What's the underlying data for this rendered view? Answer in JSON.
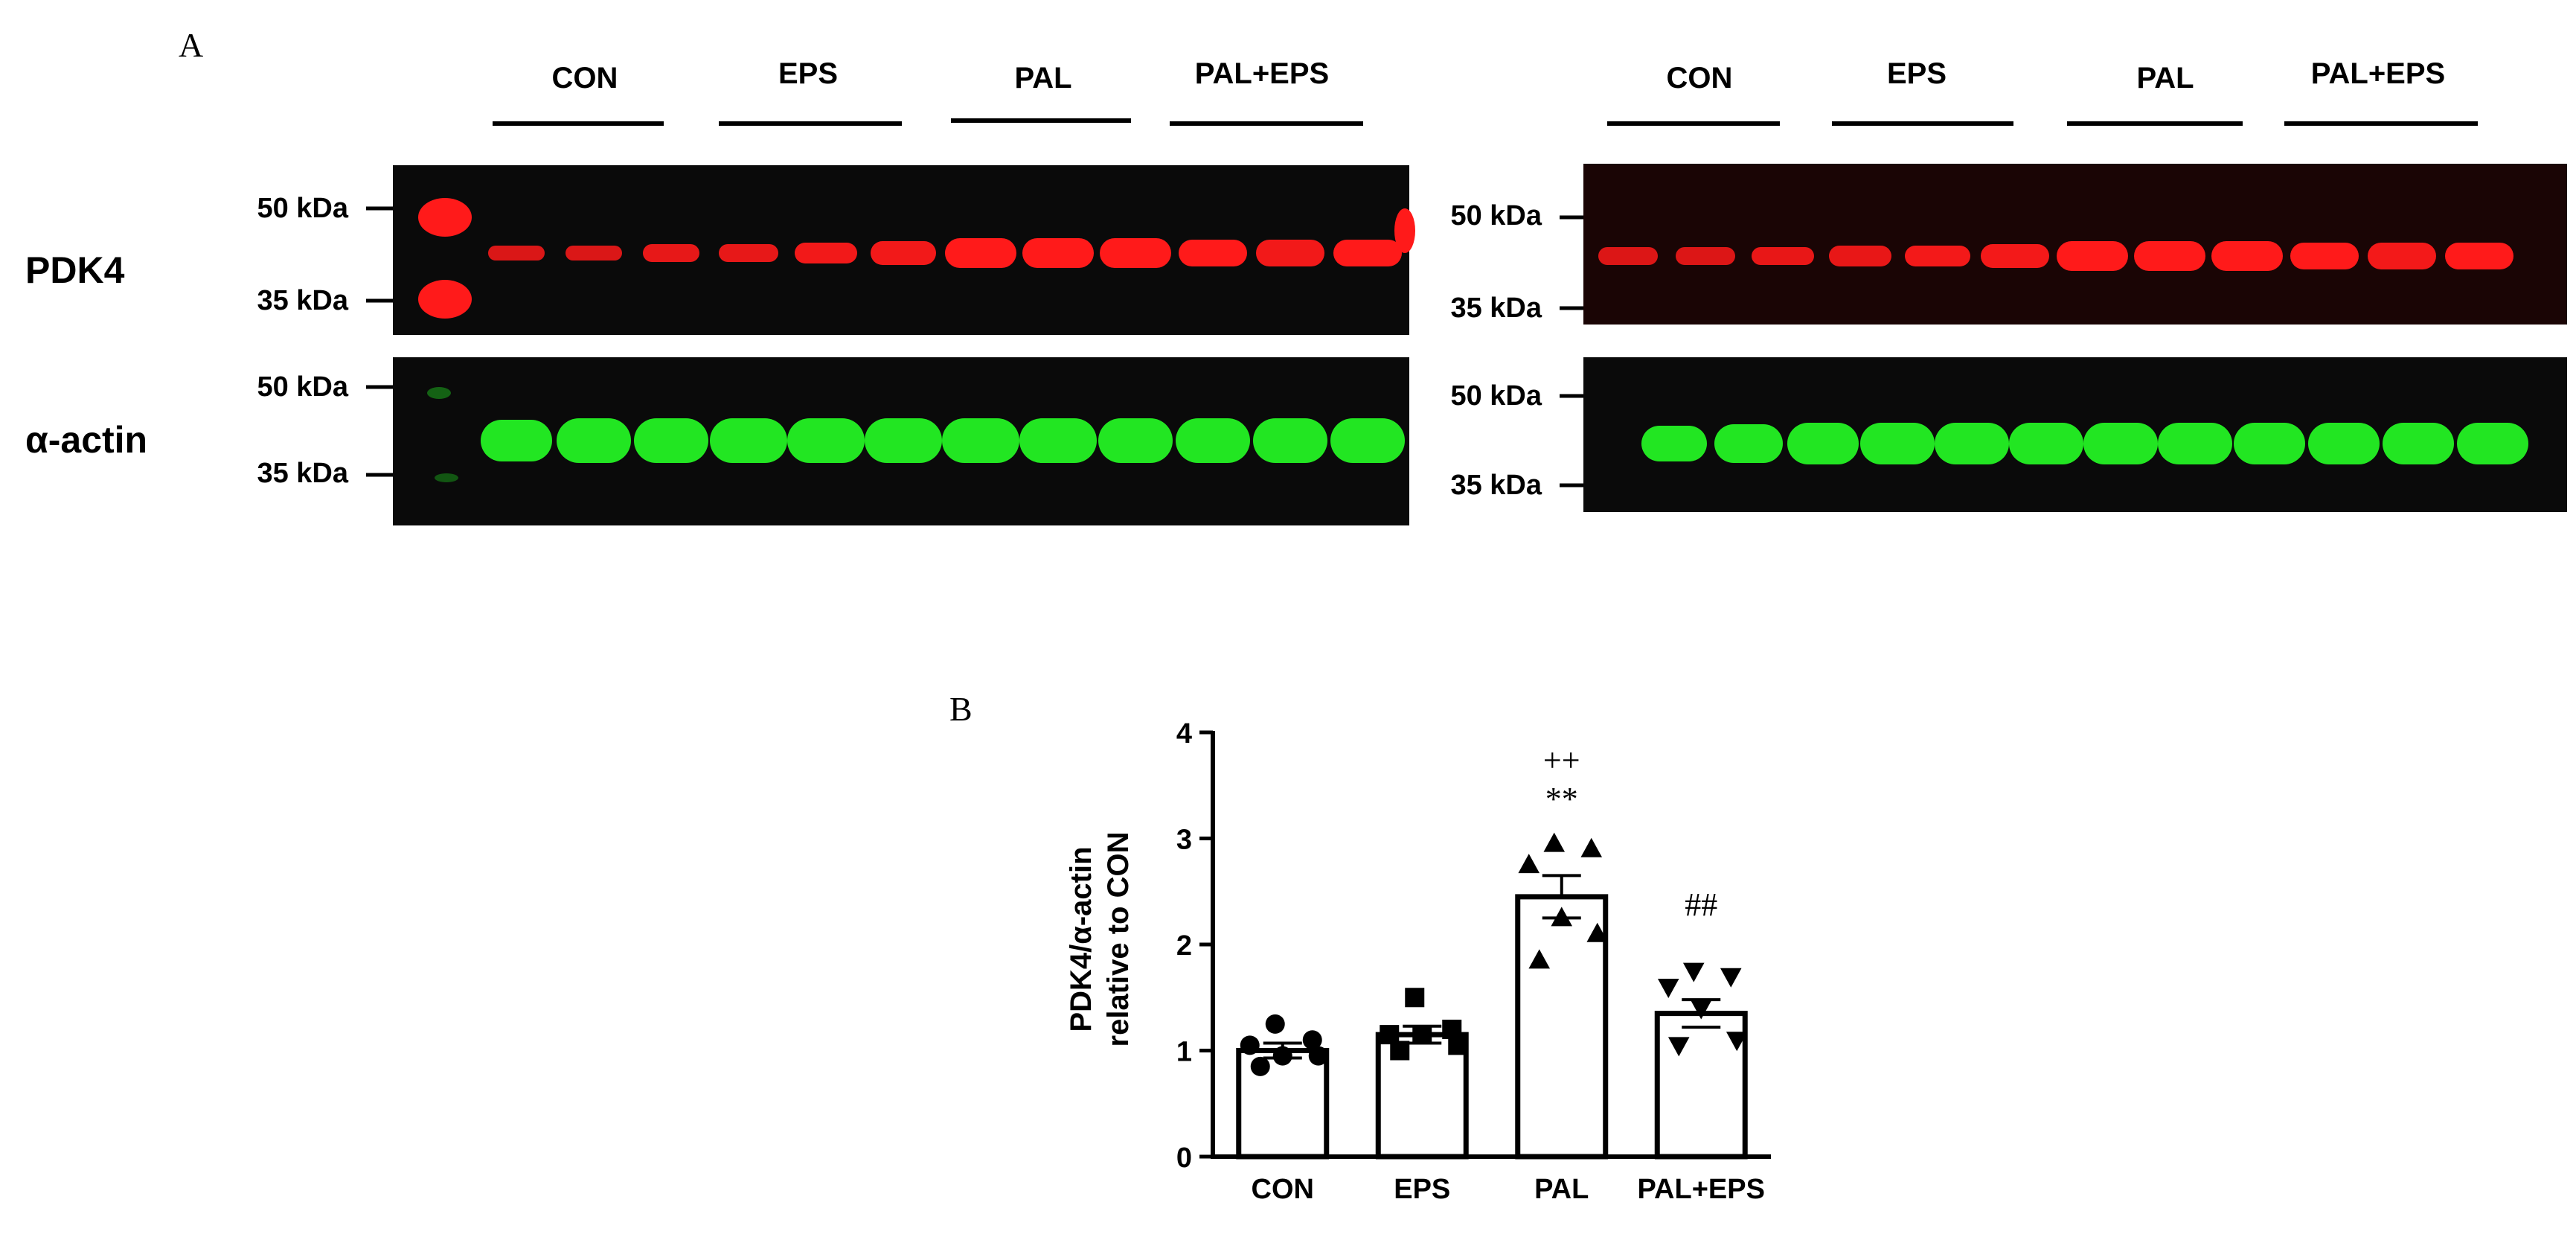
{
  "panel_a": {
    "letter": "A",
    "blots": [
      {
        "groups": [
          "CON",
          "EPS",
          "PAL",
          "PAL+EPS"
        ],
        "pdk4_markers": [
          "50 kDa",
          "35 kDa"
        ],
        "actin_markers": [
          "50 kDa",
          "35 kDa"
        ]
      },
      {
        "groups": [
          "CON",
          "EPS",
          "PAL",
          "PAL+EPS"
        ],
        "pdk4_markers": [
          "50 kDa",
          "35 kDa"
        ],
        "actin_markers": [
          "50 kDa",
          "35 kDa"
        ]
      }
    ],
    "row_labels": [
      "PDK4",
      "α-actin"
    ],
    "colors": {
      "pdk4_band": "#ff1a1a",
      "actin_band": "#22e622",
      "blot_bg": "#0a0a0a"
    }
  },
  "panel_b": {
    "letter": "B"
  },
  "chart_data": {
    "type": "bar",
    "categories": [
      "CON",
      "EPS",
      "PAL",
      "PAL+EPS"
    ],
    "values": [
      1.0,
      1.15,
      2.45,
      1.35
    ],
    "errors": [
      0.07,
      0.08,
      0.2,
      0.13
    ],
    "points": [
      [
        1.25,
        1.1,
        1.05,
        0.95,
        0.95,
        0.85
      ],
      [
        1.5,
        1.2,
        1.15,
        1.15,
        1.05,
        1.0
      ],
      [
        2.95,
        2.9,
        2.75,
        2.25,
        2.1,
        1.85
      ],
      [
        1.75,
        1.7,
        1.6,
        1.4,
        1.1,
        1.05
      ]
    ],
    "markers": [
      "circle",
      "square",
      "triangle-up",
      "triangle-down"
    ],
    "annotations": [
      {
        "category": "PAL",
        "lines": [
          "++",
          "**"
        ]
      },
      {
        "category": "PAL+EPS",
        "lines": [
          "##"
        ]
      }
    ],
    "ylabel": "PDK4/α-actin relative to CON",
    "ylabel_lines": [
      "PDK4/α-actin",
      "relative to CON"
    ],
    "ylim": [
      0,
      4
    ],
    "yticks": [
      0,
      1,
      2,
      3,
      4
    ],
    "bar_fill": "#ffffff",
    "bar_edge": "#000000",
    "grid": false
  }
}
